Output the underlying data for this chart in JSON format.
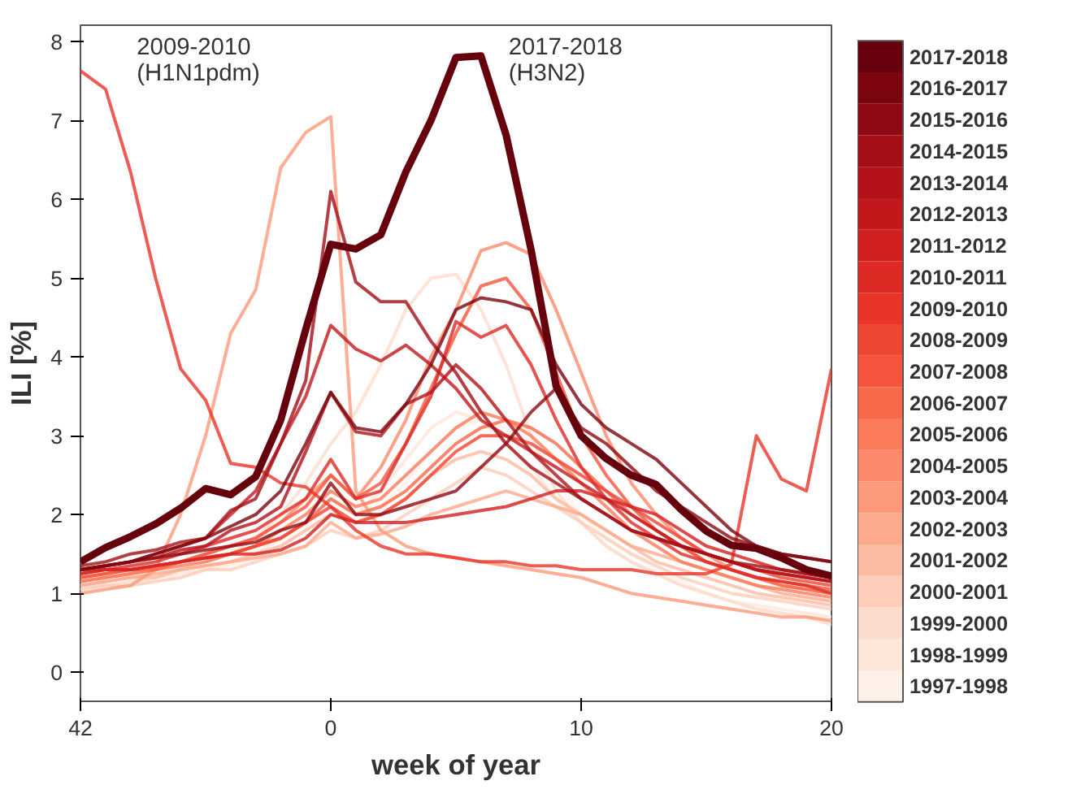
{
  "chart_data": {
    "type": "line",
    "xlabel": "week of year",
    "ylabel": "ILI [%]",
    "categories": [
      "42",
      null,
      null,
      null,
      null,
      null,
      null,
      null,
      null,
      null,
      "0",
      null,
      null,
      null,
      null,
      null,
      null,
      null,
      null,
      null,
      "10",
      null,
      null,
      null,
      null,
      null,
      null,
      null,
      null,
      null,
      "20"
    ],
    "ylim": [
      -0.37,
      8.21
    ],
    "yticks": [
      0,
      1,
      2,
      3,
      4,
      5,
      6,
      7,
      8
    ],
    "grid": false,
    "legend": "right",
    "marker": "none",
    "line_style": "solid",
    "annotations": [
      "2009-2010\n(H1N1pdm)",
      "2017-2018\n(H3N2)"
    ],
    "series": [
      {
        "name": "1997-1998",
        "color": "#fff0e8",
        "values": [
          1.0,
          1.05,
          1.1,
          1.15,
          1.2,
          1.3,
          1.35,
          1.45,
          1.6,
          1.8,
          2.0,
          1.9,
          2.1,
          2.4,
          2.8,
          3.1,
          3.2,
          3.1,
          2.8,
          2.4,
          2.0,
          1.7,
          1.5,
          1.3,
          1.15,
          1.0,
          0.9,
          0.8,
          0.75,
          0.7,
          0.65
        ]
      },
      {
        "name": "1998-1999",
        "color": "#fee6da",
        "values": [
          1.05,
          1.1,
          1.1,
          1.2,
          1.25,
          1.3,
          1.4,
          1.5,
          1.7,
          1.9,
          2.2,
          2.0,
          2.3,
          2.7,
          3.1,
          3.3,
          3.2,
          2.9,
          2.6,
          2.2,
          1.9,
          1.6,
          1.4,
          1.25,
          1.1,
          1.0,
          0.9,
          0.85,
          0.8,
          0.75,
          0.7
        ]
      },
      {
        "name": "1999-2000",
        "color": "#fedccd",
        "values": [
          1.1,
          1.1,
          1.15,
          1.2,
          1.3,
          1.4,
          1.5,
          1.7,
          2.0,
          2.4,
          2.9,
          3.3,
          3.9,
          4.6,
          5.0,
          5.05,
          4.6,
          3.9,
          3.0,
          2.3,
          1.9,
          1.6,
          1.4,
          1.25,
          1.1,
          1.0,
          0.9,
          0.8,
          0.75,
          0.7,
          0.6
        ]
      },
      {
        "name": "2000-2001",
        "color": "#fdcdb9",
        "values": [
          1.05,
          1.1,
          1.1,
          1.15,
          1.2,
          1.3,
          1.3,
          1.4,
          1.5,
          1.6,
          1.8,
          1.7,
          1.8,
          2.0,
          2.2,
          2.4,
          2.6,
          2.5,
          2.3,
          2.1,
          1.9,
          1.7,
          1.5,
          1.35,
          1.2,
          1.1,
          1.0,
          0.95,
          0.9,
          0.85,
          0.8
        ]
      },
      {
        "name": "2001-2002",
        "color": "#fcbba1",
        "values": [
          1.1,
          1.15,
          1.2,
          1.2,
          1.3,
          1.35,
          1.4,
          1.5,
          1.6,
          1.8,
          2.0,
          1.9,
          2.0,
          2.2,
          2.5,
          2.7,
          2.8,
          2.7,
          2.5,
          2.2,
          2.0,
          1.8,
          1.6,
          1.4,
          1.3,
          1.2,
          1.1,
          1.0,
          0.95,
          0.9,
          0.85
        ]
      },
      {
        "name": "2002-2003",
        "color": "#fcaa8d",
        "values": [
          1.1,
          1.15,
          1.2,
          1.25,
          1.3,
          1.35,
          1.4,
          1.45,
          1.5,
          1.6,
          1.9,
          1.7,
          1.75,
          1.85,
          2.0,
          2.1,
          2.2,
          2.3,
          2.2,
          2.1,
          2.0,
          1.8,
          1.6,
          1.5,
          1.4,
          1.3,
          1.2,
          1.1,
          1.0,
          0.95,
          0.9
        ]
      },
      {
        "name": "2003-2004",
        "color": "#fc9a7b",
        "values": [
          1.0,
          1.05,
          1.1,
          1.3,
          2.0,
          3.0,
          4.3,
          4.85,
          6.4,
          6.85,
          7.05,
          2.3,
          1.8,
          1.6,
          1.5,
          1.45,
          1.4,
          1.35,
          1.3,
          1.25,
          1.2,
          1.1,
          1.0,
          0.95,
          0.9,
          0.85,
          0.8,
          0.75,
          0.7,
          0.7,
          0.65
        ]
      },
      {
        "name": "2004-2005",
        "color": "#fc8a6a",
        "values": [
          1.15,
          1.2,
          1.25,
          1.3,
          1.4,
          1.5,
          1.6,
          1.7,
          1.9,
          2.2,
          2.5,
          2.2,
          2.6,
          3.2,
          4.0,
          4.6,
          5.35,
          5.45,
          5.3,
          4.6,
          3.8,
          3.0,
          2.4,
          2.0,
          1.7,
          1.5,
          1.3,
          1.2,
          1.1,
          1.05,
          1.0
        ]
      },
      {
        "name": "2005-2006",
        "color": "#fb7a5a",
        "values": [
          1.15,
          1.2,
          1.25,
          1.3,
          1.35,
          1.4,
          1.5,
          1.6,
          1.8,
          2.0,
          2.3,
          2.1,
          2.2,
          2.5,
          2.8,
          3.1,
          3.3,
          3.2,
          3.0,
          2.7,
          2.4,
          2.1,
          1.8,
          1.6,
          1.4,
          1.3,
          1.2,
          1.1,
          1.05,
          1.0,
          0.95
        ]
      },
      {
        "name": "2006-2007",
        "color": "#f8694a",
        "values": [
          1.2,
          1.25,
          1.3,
          1.3,
          1.4,
          1.45,
          1.5,
          1.6,
          1.7,
          1.9,
          2.2,
          2.0,
          2.1,
          2.3,
          2.6,
          2.9,
          3.1,
          3.2,
          3.1,
          2.9,
          2.6,
          2.3,
          2.0,
          1.8,
          1.6,
          1.4,
          1.3,
          1.2,
          1.1,
          1.05,
          1.0
        ]
      },
      {
        "name": "2007-2008",
        "color": "#f5553d",
        "values": [
          1.2,
          1.25,
          1.3,
          1.35,
          1.4,
          1.5,
          1.6,
          1.7,
          1.9,
          2.1,
          2.5,
          2.2,
          2.4,
          2.9,
          3.6,
          4.3,
          4.9,
          5.0,
          4.6,
          3.8,
          3.0,
          2.5,
          2.1,
          1.8,
          1.6,
          1.4,
          1.3,
          1.2,
          1.15,
          1.1,
          1.05
        ]
      },
      {
        "name": "2008-2009",
        "color": "#ef4533",
        "values": [
          1.25,
          1.3,
          1.3,
          1.35,
          1.4,
          1.45,
          1.5,
          1.6,
          1.7,
          1.9,
          2.1,
          1.9,
          2.0,
          2.2,
          2.5,
          2.8,
          3.0,
          3.0,
          2.9,
          2.7,
          2.5,
          2.3,
          2.1,
          1.9,
          1.7,
          1.5,
          1.4,
          1.3,
          1.2,
          1.15,
          1.1
        ]
      },
      {
        "name": "2009-2010",
        "color": "#e83429",
        "values": [
          7.63,
          7.4,
          6.35,
          5.0,
          3.85,
          3.45,
          2.65,
          2.6,
          2.4,
          2.35,
          2.1,
          1.8,
          1.6,
          1.5,
          1.5,
          1.45,
          1.4,
          1.4,
          1.35,
          1.35,
          1.3,
          1.3,
          1.3,
          1.25,
          1.25,
          1.25,
          1.37,
          3.0,
          2.45,
          2.3,
          3.85
        ]
      },
      {
        "name": "2010-2011",
        "color": "#dd2a25",
        "values": [
          1.3,
          1.3,
          1.35,
          1.4,
          1.5,
          1.6,
          1.7,
          1.8,
          2.0,
          2.2,
          2.7,
          2.2,
          2.3,
          2.9,
          3.5,
          4.45,
          4.25,
          4.4,
          3.9,
          3.2,
          2.6,
          2.2,
          1.9,
          1.7,
          1.5,
          1.4,
          1.3,
          1.2,
          1.15,
          1.1,
          1.0
        ]
      },
      {
        "name": "2011-2012",
        "color": "#d21f20",
        "values": [
          1.25,
          1.3,
          1.3,
          1.35,
          1.4,
          1.45,
          1.5,
          1.5,
          1.55,
          1.7,
          2.0,
          1.9,
          1.9,
          1.9,
          1.95,
          2.0,
          2.05,
          2.1,
          2.2,
          2.3,
          2.3,
          2.2,
          2.1,
          2.0,
          1.8,
          1.6,
          1.5,
          1.4,
          1.3,
          1.25,
          1.2
        ]
      },
      {
        "name": "2012-2013",
        "color": "#c2181c",
        "values": [
          1.3,
          1.35,
          1.4,
          1.5,
          1.6,
          1.7,
          2.0,
          2.3,
          2.9,
          3.5,
          4.4,
          4.1,
          3.95,
          4.15,
          3.9,
          3.6,
          3.2,
          3.0,
          2.8,
          2.6,
          2.4,
          2.2,
          2.0,
          1.8,
          1.6,
          1.5,
          1.4,
          1.3,
          1.25,
          1.2,
          1.15
        ]
      },
      {
        "name": "2013-2014",
        "color": "#b31218",
        "values": [
          1.3,
          1.35,
          1.4,
          1.45,
          1.55,
          1.6,
          1.8,
          1.9,
          2.1,
          2.8,
          3.55,
          3.05,
          3.0,
          3.4,
          3.55,
          3.9,
          3.6,
          3.2,
          2.8,
          2.5,
          2.2,
          2.0,
          1.8,
          1.7,
          1.6,
          1.5,
          1.4,
          1.3,
          1.25,
          1.2,
          1.15
        ]
      },
      {
        "name": "2014-2015",
        "color": "#a30f15",
        "values": [
          1.35,
          1.4,
          1.5,
          1.55,
          1.65,
          1.7,
          2.05,
          2.2,
          2.9,
          3.7,
          6.1,
          4.95,
          4.7,
          4.7,
          4.2,
          3.8,
          3.3,
          2.9,
          2.6,
          2.4,
          2.2,
          2.0,
          1.8,
          1.7,
          1.6,
          1.5,
          1.4,
          1.35,
          1.3,
          1.25,
          1.2
        ]
      },
      {
        "name": "2015-2016",
        "color": "#8f0912",
        "values": [
          1.3,
          1.35,
          1.4,
          1.45,
          1.5,
          1.55,
          1.6,
          1.65,
          1.8,
          1.9,
          2.4,
          2.0,
          2.0,
          2.1,
          2.2,
          2.3,
          2.6,
          2.9,
          3.3,
          3.6,
          3.1,
          2.9,
          2.6,
          2.3,
          2.1,
          1.9,
          1.7,
          1.6,
          1.5,
          1.45,
          1.4
        ]
      },
      {
        "name": "2016-2017",
        "color": "#7c050f",
        "values": [
          1.3,
          1.35,
          1.4,
          1.5,
          1.6,
          1.7,
          1.85,
          2.0,
          2.3,
          2.9,
          3.55,
          3.1,
          3.05,
          3.4,
          3.9,
          4.6,
          4.75,
          4.7,
          4.6,
          3.9,
          3.4,
          3.1,
          2.9,
          2.7,
          2.4,
          2.1,
          1.8,
          1.6,
          1.5,
          1.45,
          1.4
        ]
      },
      {
        "name": "2017-2018",
        "color": "#67000d",
        "values": [
          1.4,
          1.58,
          1.72,
          1.88,
          2.08,
          2.33,
          2.25,
          2.48,
          3.2,
          4.35,
          5.43,
          5.37,
          5.55,
          6.35,
          7.0,
          7.8,
          7.82,
          6.82,
          5.36,
          3.63,
          3.0,
          2.71,
          2.5,
          2.38,
          2.06,
          1.79,
          1.61,
          1.57,
          1.45,
          1.3,
          1.22
        ]
      }
    ]
  }
}
